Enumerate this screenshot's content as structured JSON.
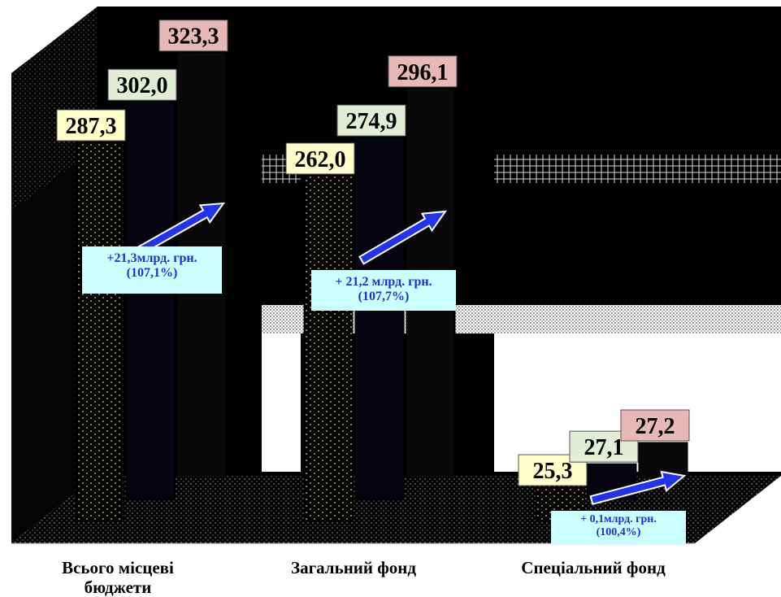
{
  "chart_data": {
    "type": "bar",
    "categories": [
      "Всього місцеві бюджети",
      "Загальний фонд",
      "Спеціальний фонд"
    ],
    "series": [
      {
        "values": [
          287.3,
          262.0,
          25.3
        ],
        "labels": [
          "287,3",
          "262,0",
          "25,3"
        ],
        "label_color": "#ffffcc"
      },
      {
        "values": [
          302.0,
          274.9,
          27.1
        ],
        "labels": [
          "302,0",
          "274,9",
          "27,1"
        ],
        "label_color": "#e3ecd5"
      },
      {
        "values": [
          323.3,
          296.1,
          27.2
        ],
        "labels": [
          "323,3",
          "296,1",
          "27,2"
        ],
        "label_color": "#e8b7b7"
      }
    ],
    "annotations": [
      {
        "line1": "+21,3млрд. грн.",
        "line2": "(107,1%)"
      },
      {
        "line1": "+ 21,2 млрд. грн.",
        "line2": "(107,7%)"
      },
      {
        "line1": "+ 0,1млрд. грн.",
        "line2": "(100,4%)"
      }
    ],
    "colors": {
      "background": "#000000",
      "note_bg": "#ccffff",
      "arrow": "#2233ee",
      "text_blue": "#1f2fd6"
    },
    "legend": "none",
    "grid": false
  },
  "labels": {
    "cat1_line1": "Всього місцеві",
    "cat1_line2": "бюджети",
    "cat2": "Загальний фонд",
    "cat3": "Спеціальний фонд"
  }
}
